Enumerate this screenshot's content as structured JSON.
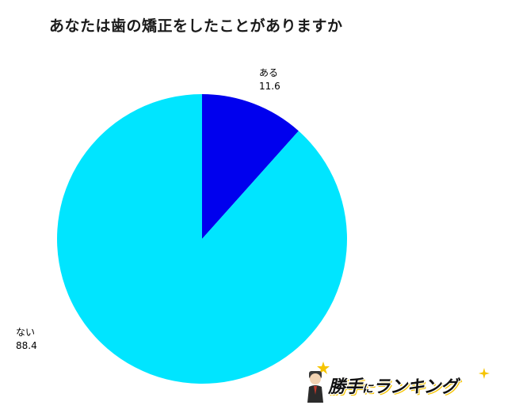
{
  "chart_data": {
    "type": "pie",
    "title": "あなたは歯の矯正をしたことがありますか",
    "slices": [
      {
        "label": "ある",
        "value": 11.6,
        "color": "#0000ee"
      },
      {
        "label": "ない",
        "value": 88.4,
        "color": "#00e5ff"
      }
    ],
    "start_angle_deg": 0,
    "direction": "clockwise"
  },
  "logo": {
    "brand": "勝手にランキング",
    "part1": "勝手",
    "part2": "に",
    "part3": "ランキング"
  }
}
